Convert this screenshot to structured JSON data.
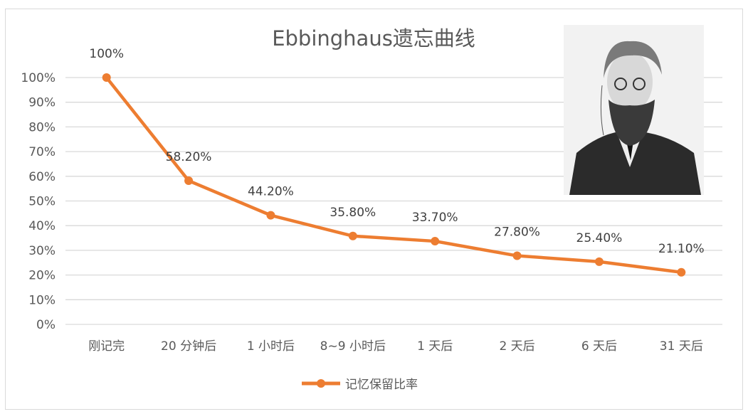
{
  "chart_data": {
    "type": "line",
    "title": "Ebbinghaus遗忘曲线",
    "categories": [
      "刚记完",
      "20 分钟后",
      "1 小时后",
      "8~9 小时后",
      "1 天后",
      "2 天后",
      "6 天后",
      "31 天后"
    ],
    "series": [
      {
        "name": "记忆保留比率",
        "values": [
          100,
          58.2,
          44.2,
          35.8,
          33.7,
          27.8,
          25.4,
          21.1
        ],
        "labels": [
          "100%",
          "58.20%",
          "44.20%",
          "35.80%",
          "33.70%",
          "27.80%",
          "25.40%",
          "21.10%"
        ]
      }
    ],
    "yticks": [
      "0%",
      "10%",
      "20%",
      "30%",
      "40%",
      "50%",
      "60%",
      "70%",
      "80%",
      "90%",
      "100%"
    ],
    "ylim": [
      0,
      100
    ],
    "grid": true,
    "legend": "bottom",
    "colors": {
      "series": "#ed7d31",
      "grid": "#d9d9d9",
      "text": "#595959"
    },
    "image": "portrait-photo"
  }
}
